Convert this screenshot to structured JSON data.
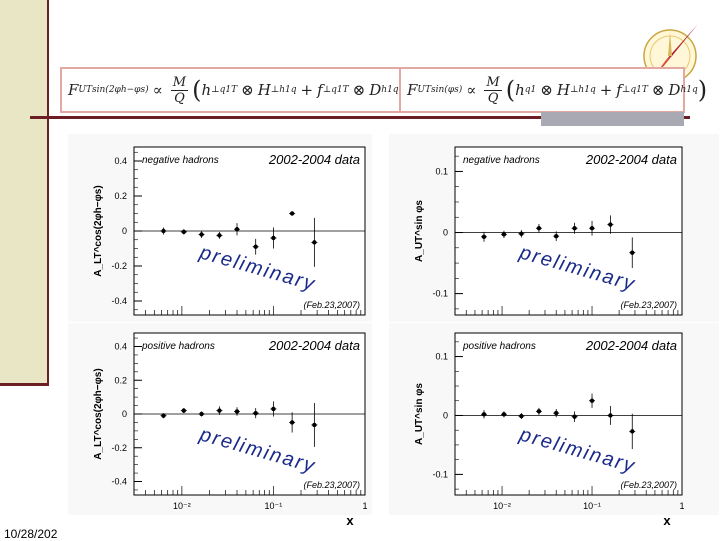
{
  "footer": {
    "date": "10/28/202"
  },
  "formulas": [
    {
      "lhs": "F",
      "lhs_sub": "UT",
      "lhs_sup": "sin(2φh−φs)",
      "prop": "∝",
      "num": "M",
      "den": "Q",
      "t1": "h",
      "t1_sup": "⊥q",
      "t1_sub": "1T",
      "otimes": "⊗",
      "t2": "H",
      "t2_sup": "⊥h",
      "t2_sub": "1q",
      "plus": "+",
      "t3": "f",
      "t3_sup": "⊥q",
      "t3_sub": "1T",
      "t4": "D",
      "t4_sup": "h",
      "t4_sub": "1q"
    },
    {
      "lhs": "F",
      "lhs_sub": "UT",
      "lhs_sup": "sin(φs)",
      "prop": "∝",
      "num": "M",
      "den": "Q",
      "t1": "h",
      "t1_sup": "q",
      "t1_sub": "1",
      "otimes": "⊗",
      "t2": "H",
      "t2_sup": "⊥h",
      "t2_sub": "1q",
      "plus": "+",
      "t3": "f",
      "t3_sup": "⊥q",
      "t3_sub": "1T",
      "t4": "D",
      "t4_sup": "h",
      "t4_sub": "1q"
    }
  ],
  "chart_data": [
    {
      "type": "scatter",
      "id": "p1",
      "hadrons": "negative hadrons",
      "dataset": "2002-2004 data",
      "ylabel": "A_LT^cos(2φh−φs)",
      "xlabel": "x",
      "x_scale": "log",
      "xlim": [
        0.003,
        1
      ],
      "ylim": [
        -0.48,
        0.48
      ],
      "yticks": [
        -0.4,
        -0.2,
        0,
        0.2,
        0.4
      ],
      "ytick_labels": [
        "-0.4",
        "-0.2",
        "0",
        "0.2",
        "0.4"
      ],
      "xticks": [],
      "xtick_labels": [],
      "x": [
        0.0063,
        0.0105,
        0.0164,
        0.0257,
        0.04,
        0.064,
        0.1,
        0.16,
        0.28
      ],
      "y": [
        0.0,
        -0.005,
        -0.02,
        -0.025,
        0.01,
        -0.09,
        -0.04,
        0.1,
        -0.065
      ],
      "err": [
        0.02,
        0.015,
        0.02,
        0.02,
        0.035,
        0.045,
        0.06,
        0.01,
        0.14
      ],
      "watermark": "preliminary",
      "stamp": "(Feb.23,2007)"
    },
    {
      "type": "scatter",
      "id": "p2",
      "hadrons": "negative hadrons",
      "dataset": "2002-2004 data",
      "ylabel": "A_UT^sin φs",
      "xlabel": "x",
      "x_scale": "log",
      "xlim": [
        0.003,
        1
      ],
      "ylim": [
        -0.135,
        0.14
      ],
      "yticks": [
        -0.1,
        0,
        0.1
      ],
      "ytick_labels": [
        "-0.1",
        "0",
        "0.1"
      ],
      "xticks": [],
      "xtick_labels": [],
      "x": [
        0.0063,
        0.0105,
        0.0164,
        0.0257,
        0.04,
        0.064,
        0.1,
        0.16,
        0.28
      ],
      "y": [
        -0.007,
        -0.003,
        -0.002,
        0.007,
        -0.006,
        0.007,
        0.007,
        0.013,
        -0.033
      ],
      "err": [
        0.008,
        0.006,
        0.006,
        0.007,
        0.008,
        0.009,
        0.012,
        0.015,
        0.025
      ],
      "watermark": "preliminary",
      "stamp": "(Feb.23,2007)"
    },
    {
      "type": "scatter",
      "id": "p3",
      "hadrons": "positive hadrons",
      "dataset": "2002-2004 data",
      "ylabel": "A_LT^cos(2φh−φs)",
      "xlabel": "x",
      "x_scale": "log",
      "xlim": [
        0.003,
        1
      ],
      "ylim": [
        -0.48,
        0.48
      ],
      "yticks": [
        -0.4,
        -0.2,
        0,
        0.2,
        0.4
      ],
      "ytick_labels": [
        "-0.4",
        "-0.2",
        "0",
        "0.2",
        "0.4"
      ],
      "xticks": [
        0.01,
        0.1,
        1
      ],
      "xtick_labels": [
        "10⁻²",
        "10⁻¹",
        "1"
      ],
      "x": [
        0.0063,
        0.0105,
        0.0164,
        0.0257,
        0.04,
        0.064,
        0.1,
        0.16,
        0.28
      ],
      "y": [
        -0.01,
        0.02,
        0.0,
        0.02,
        0.015,
        0.005,
        0.03,
        -0.05,
        -0.065
      ],
      "err": [
        0.015,
        0.015,
        0.015,
        0.025,
        0.025,
        0.03,
        0.045,
        0.06,
        0.13
      ],
      "watermark": "preliminary",
      "stamp": "(Feb.23,2007)"
    },
    {
      "type": "scatter",
      "id": "p4",
      "hadrons": "positive hadrons",
      "dataset": "2002-2004 data",
      "ylabel": "A_UT^sin φs",
      "xlabel": "x",
      "x_scale": "log",
      "xlim": [
        0.003,
        1
      ],
      "ylim": [
        -0.135,
        0.14
      ],
      "yticks": [
        -0.1,
        0,
        0.1
      ],
      "ytick_labels": [
        "-0.1",
        "0",
        "0.1"
      ],
      "xticks": [
        0.01,
        0.1,
        1
      ],
      "xtick_labels": [
        "10⁻²",
        "10⁻¹",
        "1"
      ],
      "x": [
        0.0063,
        0.0105,
        0.0164,
        0.0257,
        0.04,
        0.064,
        0.1,
        0.16,
        0.28
      ],
      "y": [
        0.002,
        0.002,
        -0.001,
        0.007,
        0.004,
        -0.002,
        0.025,
        0.0,
        -0.027
      ],
      "err": [
        0.007,
        0.005,
        0.005,
        0.006,
        0.007,
        0.009,
        0.012,
        0.016,
        0.03
      ],
      "watermark": "preliminary",
      "stamp": "(Feb.23,2007)"
    }
  ]
}
